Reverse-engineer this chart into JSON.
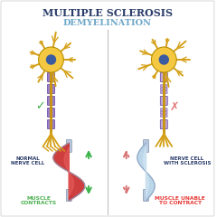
{
  "title1": "MULTIPLE SCLEROSIS",
  "title2": "DEMYELINATION",
  "title1_color": "#2c3e6b",
  "title2_color": "#6fa8c8",
  "bg_color": "#ffffff",
  "left_label1": "NORMAL\nNERVE CELL",
  "left_sub": "MUSCLE\nCONTRACTS",
  "left_sub_color": "#4caf50",
  "right_label1": "NERVE CELL\nWITH SCLEROSIS",
  "right_sub": "MUSCLE UNABLE\nTO CONTRACT",
  "right_sub_color": "#e53935",
  "divider_color": "#c0c0c0",
  "neuron_body_color": "#f5c842",
  "neuron_nucleus_color": "#3a5ba0",
  "dendrite_color": "#d4a017",
  "myelin_color": "#9b7fc7",
  "myelin_damaged_color": "#c0a8d8",
  "axon_color": "#c8960a",
  "muscle_red_color": "#cc3333",
  "muscle_red_light": "#e86060",
  "muscle_blue_color": "#b8d4e8",
  "muscle_blue_light": "#d8eaf5",
  "muscle_outline_color": "#8a9ebd",
  "tendon_color": "#b8c8e0",
  "nerve_end_color": "#d4a017",
  "check_color": "#3cb34a",
  "cross_color": "#e07878",
  "arrow_green": "#3cb34a",
  "arrow_red": "#d87070",
  "label_color": "#2c3e6b"
}
